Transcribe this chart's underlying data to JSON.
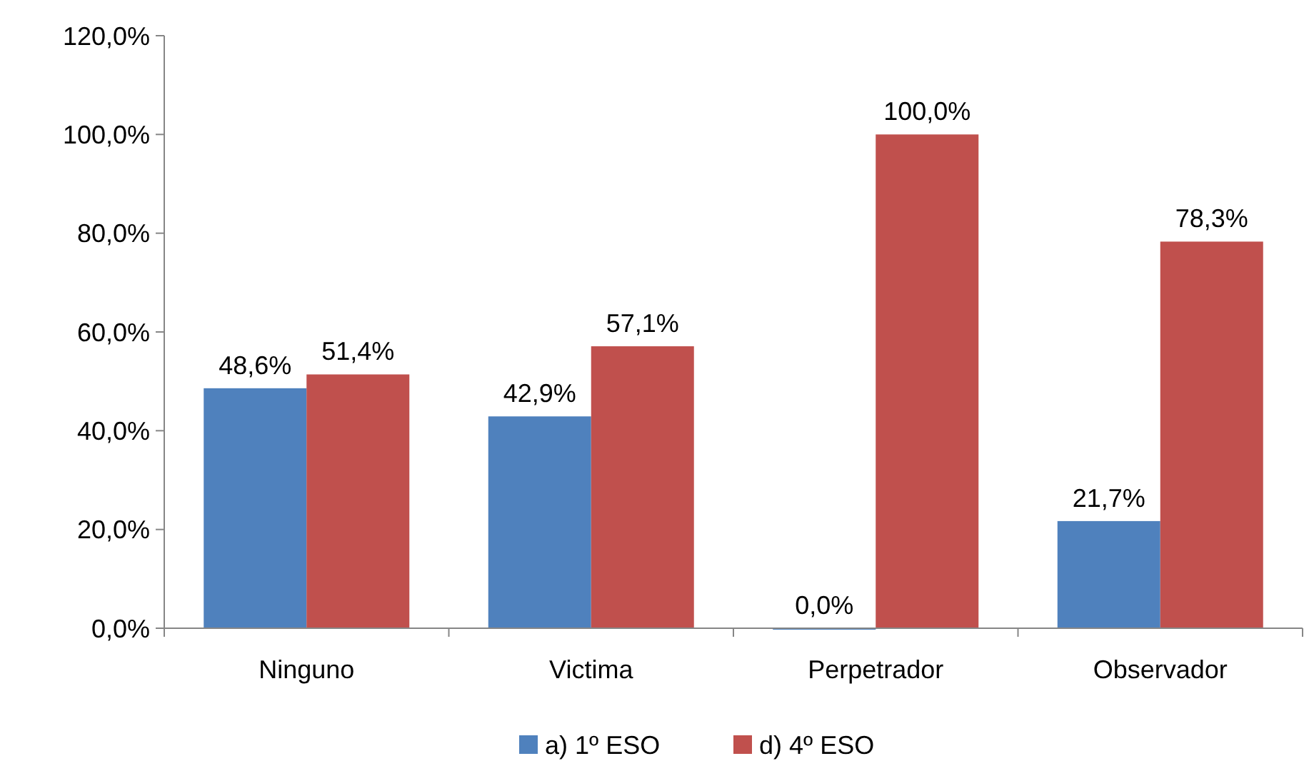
{
  "chart_data": {
    "type": "bar",
    "categories": [
      "Ninguno",
      "Victima",
      "Perpetrador",
      "Observador"
    ],
    "series": [
      {
        "name": "a) 1º ESO",
        "color": "#4f81bd",
        "values": [
          48.6,
          42.9,
          0.0,
          21.7
        ],
        "value_labels": [
          "48,6%",
          "42,9%",
          "0,0%",
          "21,7%"
        ]
      },
      {
        "name": "d) 4º ESO",
        "color": "#c0504d",
        "values": [
          51.4,
          57.1,
          100.0,
          78.3
        ],
        "value_labels": [
          "51,4%",
          "57,1%",
          "100,0%",
          "78,3%"
        ]
      }
    ],
    "ylim": [
      0,
      120
    ],
    "yticks": [
      {
        "value": 0,
        "label": "0,0%"
      },
      {
        "value": 20,
        "label": "20,0%"
      },
      {
        "value": 40,
        "label": "40,0%"
      },
      {
        "value": 60,
        "label": "60,0%"
      },
      {
        "value": 80,
        "label": "80,0%"
      },
      {
        "value": 100,
        "label": "100,0%"
      },
      {
        "value": 120,
        "label": "120,0%"
      }
    ],
    "legend": "bottom"
  }
}
